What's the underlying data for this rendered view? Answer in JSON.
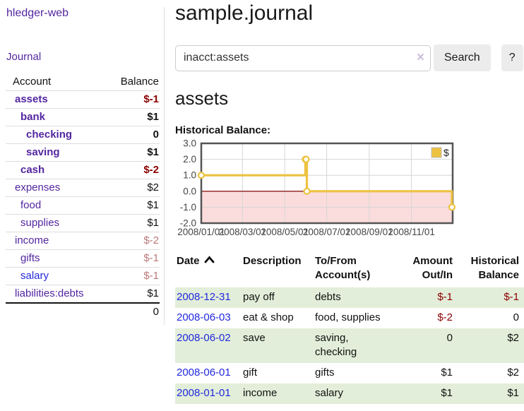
{
  "app": {
    "brand": "hledger-web",
    "journal_link": "Journal"
  },
  "colors": {
    "link_purple": "#5326A0",
    "link_blue": "#2228DD",
    "negative": "#8B0000",
    "negative_muted": "#BA7878",
    "row_shaded_green": "#E2EED9",
    "button_bg": "#ECECEC"
  },
  "sidebar": {
    "header": {
      "account": "Account",
      "balance": "Balance"
    },
    "accounts": [
      {
        "name": "assets",
        "indent": 0,
        "bold": true,
        "balance": "$-1",
        "balance_style": "negative"
      },
      {
        "name": "bank",
        "indent": 1,
        "bold": true,
        "balance": "$1",
        "balance_style": "normal"
      },
      {
        "name": "checking",
        "indent": 2,
        "bold": true,
        "balance": "0",
        "balance_style": "normal"
      },
      {
        "name": "saving",
        "indent": 2,
        "bold": true,
        "balance": "$1",
        "balance_style": "normal"
      },
      {
        "name": "cash",
        "indent": 1,
        "bold": true,
        "balance": "$-2",
        "balance_style": "negative"
      },
      {
        "name": "expenses",
        "indent": 0,
        "bold": false,
        "balance": "$2",
        "balance_style": "normal"
      },
      {
        "name": "food",
        "indent": 1,
        "bold": false,
        "balance": "$1",
        "balance_style": "normal"
      },
      {
        "name": "supplies",
        "indent": 1,
        "bold": false,
        "balance": "$1",
        "balance_style": "normal"
      },
      {
        "name": "income",
        "indent": 0,
        "bold": false,
        "balance": "$-2",
        "balance_style": "negative-muted"
      },
      {
        "name": "gifts",
        "indent": 1,
        "bold": false,
        "balance": "$-1",
        "balance_style": "negative-muted"
      },
      {
        "name": "salary",
        "indent": 1,
        "bold": false,
        "link_color": "blue",
        "balance": "$-1",
        "balance_style": "negative-muted"
      },
      {
        "name": "liabilities:debts",
        "indent": 0,
        "bold": false,
        "balance": "$1",
        "balance_style": "normal"
      }
    ],
    "total": "0"
  },
  "header": {
    "title": "sample.journal"
  },
  "search": {
    "value": "inacct:assets",
    "clear_icon": "×",
    "button_label": "Search",
    "help_label": "?"
  },
  "main": {
    "account_title": "assets",
    "chart_label": "Historical Balance:"
  },
  "chart_data": {
    "type": "line",
    "title": "Historical Balance",
    "step": true,
    "ylim": [
      -2,
      3
    ],
    "grid": true,
    "legend": {
      "label": "$",
      "position": "top-right"
    },
    "series": [
      {
        "name": "$",
        "points": [
          {
            "date": "2008-01-01",
            "value": 1,
            "f": 0.0
          },
          {
            "date": "2008-06-01",
            "value": 2,
            "f": 0.414
          },
          {
            "date": "2008-06-02",
            "value": 2,
            "f": 0.417
          },
          {
            "date": "2008-06-03",
            "value": 0,
            "f": 0.42
          },
          {
            "date": "2008-12-31",
            "value": -1,
            "f": 0.997
          }
        ]
      }
    ],
    "y_ticks": [
      {
        "label": "3.0",
        "value": 3
      },
      {
        "label": "2.0",
        "value": 2
      },
      {
        "label": "1.0",
        "value": 1
      },
      {
        "label": "0.0",
        "value": 0
      },
      {
        "label": "-1.0",
        "value": -1
      },
      {
        "label": "-2.0",
        "value": -2
      }
    ],
    "x_ticks": [
      {
        "label": "2008/01/01",
        "f": 0.0
      },
      {
        "label": "2008/03/01",
        "f": 0.164
      },
      {
        "label": "2008/05/01",
        "f": 0.332
      },
      {
        "label": "2008/07/01",
        "f": 0.499
      },
      {
        "label": "2008/09/01",
        "f": 0.668
      },
      {
        "label": "2008/11/01",
        "f": 0.836
      }
    ],
    "colors": {
      "line": "#EDC240",
      "marker_fill": "#FFFFFF",
      "negative_region": "#FBDCDC",
      "zero_line": "#8B1A1A",
      "grid": "#D6D6D6",
      "border": "#545454",
      "tick_text": "#454545"
    }
  },
  "table": {
    "headers": {
      "date": "Date",
      "sort_icon": "caret-up",
      "description": "Description",
      "accounts_line1": "To/From",
      "accounts_line2": "Account(s)",
      "amount_line1": "Amount",
      "amount_line2": "Out/In",
      "balance_line1": "Historical",
      "balance_line2": "Balance"
    },
    "rows": [
      {
        "date": "2008-12-31",
        "description": "pay off",
        "accounts": "debts",
        "amount": "$-1",
        "amount_negative": true,
        "balance": "$-1",
        "balance_negative": true,
        "shaded": true
      },
      {
        "date": "2008-06-03",
        "description": "eat & shop",
        "accounts": "food, supplies",
        "amount": "$-2",
        "amount_negative": true,
        "balance": "0",
        "balance_negative": false,
        "shaded": false
      },
      {
        "date": "2008-06-02",
        "description": "save",
        "accounts": "saving, checking",
        "amount": "0",
        "amount_negative": false,
        "balance": "$2",
        "balance_negative": false,
        "shaded": true
      },
      {
        "date": "2008-06-01",
        "description": "gift",
        "accounts": "gifts",
        "amount": "$1",
        "amount_negative": false,
        "balance": "$2",
        "balance_negative": false,
        "shaded": false
      },
      {
        "date": "2008-01-01",
        "description": "income",
        "accounts": "salary",
        "amount": "$1",
        "amount_negative": false,
        "balance": "$1",
        "balance_negative": false,
        "shaded": true
      }
    ]
  }
}
